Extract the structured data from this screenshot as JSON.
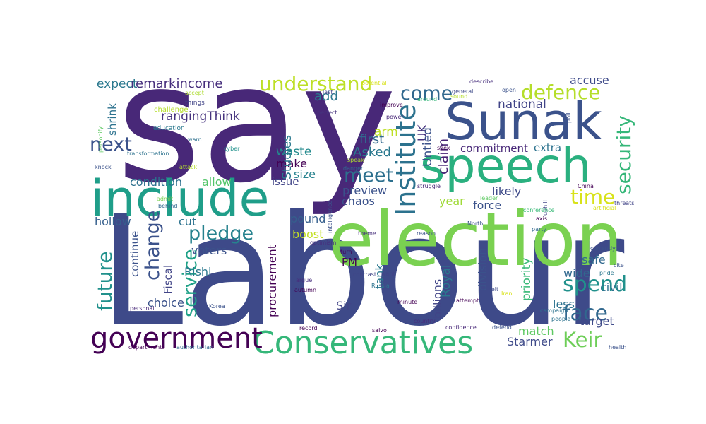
{
  "words": [
    {
      "text": "say",
      "color": "#482878"
    },
    {
      "text": "Labour",
      "color": "#3e4a89"
    },
    {
      "text": "election",
      "color": "#7ad151"
    },
    {
      "text": "speech",
      "color": "#2ab07f"
    },
    {
      "text": "Sunak",
      "color": "#3b528b"
    },
    {
      "text": "include",
      "color": "#1f9e89"
    },
    {
      "text": "Conservatives",
      "color": "#35b779"
    },
    {
      "text": "government",
      "color": "#440154"
    },
    {
      "text": "Institute",
      "color": "#2c728e"
    },
    {
      "text": "security",
      "color": "#35b779"
    },
    {
      "text": "defence",
      "color": "#b5de2b"
    },
    {
      "text": "understand",
      "color": "#bddf26"
    },
    {
      "text": "pledge",
      "color": "#26828e"
    },
    {
      "text": "change",
      "color": "#3b528b"
    },
    {
      "text": "service",
      "color": "#1fa187"
    },
    {
      "text": "face",
      "color": "#31688e"
    },
    {
      "text": "spend",
      "color": "#21918c"
    },
    {
      "text": "future",
      "color": "#21918c"
    },
    {
      "text": "meet",
      "color": "#2d708e"
    },
    {
      "text": "come",
      "color": "#31688e"
    },
    {
      "text": "next",
      "color": "#3b528b"
    },
    {
      "text": "time",
      "color": "#d8e219"
    },
    {
      "text": "Keir",
      "color": "#6ece58"
    },
    {
      "text": "rangingThink",
      "color": "#46337e"
    },
    {
      "text": "remarkincome",
      "color": "#472f7d"
    },
    {
      "text": "expect",
      "color": "#2a788e"
    },
    {
      "text": "UK",
      "color": "#46337e"
    },
    {
      "text": "Untied",
      "color": "#3b528b"
    },
    {
      "text": "claim",
      "color": "#482475"
    },
    {
      "text": "national",
      "color": "#414487"
    },
    {
      "text": "accuse",
      "color": "#3e4a89"
    },
    {
      "text": "commitment",
      "color": "#482878"
    },
    {
      "text": "extra",
      "color": "#2c728e"
    },
    {
      "text": "arm",
      "color": "#bddf26"
    },
    {
      "text": "first",
      "color": "#31688e"
    },
    {
      "text": "Asked",
      "color": "#2a788e"
    },
    {
      "text": "add",
      "color": "#2a788e"
    },
    {
      "text": "waste",
      "color": "#238a8d"
    },
    {
      "text": "make",
      "color": "#440154"
    },
    {
      "text": "Studies",
      "color": "#2a788e"
    },
    {
      "text": "size",
      "color": "#26828e"
    },
    {
      "text": "preview",
      "color": "#3b528b"
    },
    {
      "text": "issue",
      "color": "#414487"
    },
    {
      "text": "allow",
      "color": "#52c569"
    },
    {
      "text": "condition",
      "color": "#2d708e"
    },
    {
      "text": "likely",
      "color": "#3e4a89"
    },
    {
      "text": "force",
      "color": "#3b528b"
    },
    {
      "text": "year",
      "color": "#a0da39"
    },
    {
      "text": "chaos",
      "color": "#3b528b"
    },
    {
      "text": "pound",
      "color": "#355f8d"
    },
    {
      "text": "boost",
      "color": "#c2df23"
    },
    {
      "text": "hollow",
      "color": "#355f8d"
    },
    {
      "text": "cut",
      "color": "#2c728e"
    },
    {
      "text": "voters",
      "color": "#3b528b"
    },
    {
      "text": "continue",
      "color": "#3b528b"
    },
    {
      "text": "Fiscal",
      "color": "#414487"
    },
    {
      "text": "Rishi",
      "color": "#2a788e"
    },
    {
      "text": "PM",
      "color": "#440154"
    },
    {
      "text": "tank",
      "color": "#2a788e"
    },
    {
      "text": "Royal",
      "color": "#2a788e"
    },
    {
      "text": "division",
      "color": "#3b528b"
    },
    {
      "text": "priority",
      "color": "#38b977"
    },
    {
      "text": "safe",
      "color": "#31688e"
    },
    {
      "text": "wide",
      "color": "#31688e"
    },
    {
      "text": "civil",
      "color": "#2d708e"
    },
    {
      "text": "less",
      "color": "#2c728e"
    },
    {
      "text": "target",
      "color": "#3e4a89"
    },
    {
      "text": "match",
      "color": "#5ec962"
    },
    {
      "text": "choice",
      "color": "#3b528b"
    },
    {
      "text": "procurement",
      "color": "#440154"
    },
    {
      "text": "billions",
      "color": "#414487"
    },
    {
      "text": "Sir",
      "color": "#414487"
    },
    {
      "text": "Starmer",
      "color": "#3e4a89"
    },
    {
      "text": "shrink",
      "color": "#2c728e"
    },
    {
      "text": "personify",
      "color": "#5ec962"
    },
    {
      "text": "accept",
      "color": "#addc30"
    },
    {
      "text": "things",
      "color": "#414487"
    },
    {
      "text": "challenge",
      "color": "#b5de2b"
    },
    {
      "text": "education",
      "color": "#2a788e"
    },
    {
      "text": "warn",
      "color": "#2d708e"
    },
    {
      "text": "transformation",
      "color": "#2c728e"
    },
    {
      "text": "cyber",
      "color": "#21918c"
    },
    {
      "text": "knock",
      "color": "#3b528b"
    },
    {
      "text": "attack",
      "color": "#b5de2b"
    },
    {
      "text": "admit",
      "color": "#7ad151"
    },
    {
      "text": "behind",
      "color": "#31688e"
    },
    {
      "text": "potential",
      "color": "#d8e219"
    },
    {
      "text": "intelligence",
      "color": "#3b528b"
    },
    {
      "text": "last",
      "color": "#414487"
    },
    {
      "text": "perfect",
      "color": "#46337e"
    },
    {
      "text": "improve",
      "color": "#440154"
    },
    {
      "text": "power",
      "color": "#482878"
    },
    {
      "text": "general",
      "color": "#3e4a89"
    },
    {
      "text": "around",
      "color": "#35b779"
    },
    {
      "text": "sound",
      "color": "#b5de2b"
    },
    {
      "text": "describe",
      "color": "#472f7d"
    },
    {
      "text": "open",
      "color": "#3b528b"
    },
    {
      "text": "poll",
      "color": "#3b528b"
    },
    {
      "text": "seek",
      "color": "#440154"
    },
    {
      "text": "speak",
      "color": "#addc30"
    },
    {
      "text": "danger",
      "color": "#31688e"
    },
    {
      "text": "struggle",
      "color": "#482878"
    },
    {
      "text": "leader",
      "color": "#5ec962"
    },
    {
      "text": "uphill",
      "color": "#414487"
    },
    {
      "text": "China",
      "color": "#440154"
    },
    {
      "text": "conference",
      "color": "#38b977"
    },
    {
      "text": "artificial",
      "color": "#d8e219"
    },
    {
      "text": "threats",
      "color": "#414487"
    },
    {
      "text": "North",
      "color": "#3b528b"
    },
    {
      "text": "axis",
      "color": "#440154"
    },
    {
      "text": "party",
      "color": "#31688e"
    },
    {
      "text": "theme",
      "color": "#472f7d"
    },
    {
      "text": "reason",
      "color": "#3b528b"
    },
    {
      "text": "optimism",
      "color": "#472f7d"
    },
    {
      "text": "turn",
      "color": "#440154"
    },
    {
      "text": "currently",
      "color": "#3b528b"
    },
    {
      "text": "contrast",
      "color": "#414487"
    },
    {
      "text": "want",
      "color": "#414487"
    },
    {
      "text": "pride",
      "color": "#2a788e"
    },
    {
      "text": "cite",
      "color": "#3b528b"
    },
    {
      "text": "argue",
      "color": "#472f7d"
    },
    {
      "text": "Russia",
      "color": "#2c728e"
    },
    {
      "text": "autumn",
      "color": "#440154"
    },
    {
      "text": "minute",
      "color": "#440154"
    },
    {
      "text": "attempt",
      "color": "#440154"
    },
    {
      "text": "Iran",
      "color": "#d8e219"
    },
    {
      "text": "campaign",
      "color": "#2c728e"
    },
    {
      "text": "people",
      "color": "#2c728e"
    },
    {
      "text": "personal",
      "color": "#482878"
    },
    {
      "text": "Korea",
      "color": "#3b528b"
    },
    {
      "text": "country",
      "color": "#472f7d"
    },
    {
      "text": "record",
      "color": "#440154"
    },
    {
      "text": "salvo",
      "color": "#440154"
    },
    {
      "text": "confidence",
      "color": "#482878"
    },
    {
      "text": "defend",
      "color": "#3b528b"
    },
    {
      "text": "felt",
      "color": "#3e4a89"
    },
    {
      "text": "departments",
      "color": "#440154"
    },
    {
      "text": "authoritarian",
      "color": "#31688e"
    },
    {
      "text": "health",
      "color": "#3b528b"
    }
  ]
}
